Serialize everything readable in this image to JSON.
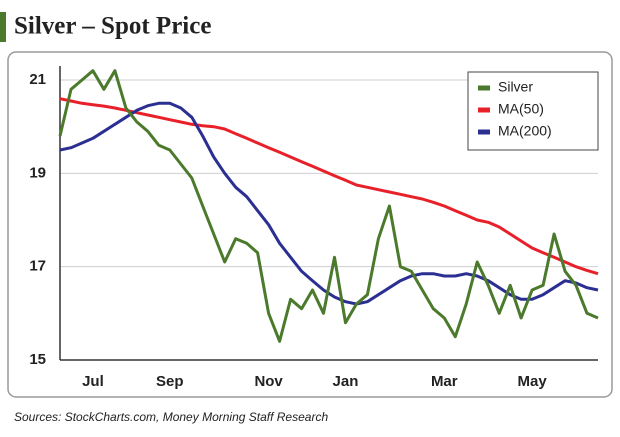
{
  "chart_data": {
    "type": "line",
    "title": "Silver – Spot Price",
    "source": "Sources: StockCharts.com, Money Morning Staff Research",
    "categories": [
      null,
      null,
      null,
      "Jul",
      null,
      null,
      null,
      null,
      null,
      null,
      "Sep",
      null,
      null,
      null,
      null,
      null,
      null,
      null,
      null,
      "Nov",
      null,
      null,
      null,
      null,
      null,
      null,
      "Jan",
      null,
      null,
      null,
      null,
      null,
      null,
      null,
      null,
      "Mar",
      null,
      null,
      null,
      null,
      null,
      null,
      null,
      "May",
      null,
      null,
      null,
      null,
      null,
      null
    ],
    "series": [
      {
        "name": "Silver",
        "color": "#4b7a2c",
        "values": [
          19.8,
          20.8,
          21.0,
          21.2,
          20.8,
          21.2,
          20.4,
          20.1,
          19.9,
          19.6,
          19.5,
          19.2,
          18.9,
          18.3,
          17.7,
          17.1,
          17.6,
          17.5,
          17.3,
          16.0,
          15.4,
          16.3,
          16.1,
          16.5,
          16.0,
          17.2,
          15.8,
          16.2,
          16.4,
          17.6,
          18.3,
          17.0,
          16.9,
          16.5,
          16.1,
          15.9,
          15.5,
          16.2,
          17.1,
          16.6,
          16.0,
          16.6,
          15.9,
          16.5,
          16.6,
          17.7,
          16.9,
          16.6,
          16.0,
          15.9
        ]
      },
      {
        "name": "MA(50)",
        "color": "#e8202a",
        "values": [
          20.6,
          20.55,
          20.5,
          20.47,
          20.44,
          20.4,
          20.35,
          20.3,
          20.25,
          20.2,
          20.15,
          20.1,
          20.05,
          20.02,
          20.0,
          19.95,
          19.85,
          19.75,
          19.65,
          19.55,
          19.45,
          19.35,
          19.25,
          19.15,
          19.05,
          18.95,
          18.85,
          18.75,
          18.7,
          18.65,
          18.6,
          18.55,
          18.5,
          18.45,
          18.38,
          18.3,
          18.2,
          18.1,
          18.0,
          17.95,
          17.85,
          17.7,
          17.55,
          17.4,
          17.3,
          17.2,
          17.1,
          17.0,
          16.92,
          16.85
        ]
      },
      {
        "name": "MA(200)",
        "color": "#2b2f92",
        "values": [
          19.5,
          19.55,
          19.65,
          19.75,
          19.9,
          20.05,
          20.2,
          20.35,
          20.45,
          20.5,
          20.5,
          20.4,
          20.2,
          19.8,
          19.35,
          19.0,
          18.7,
          18.5,
          18.2,
          17.9,
          17.5,
          17.2,
          16.9,
          16.7,
          16.5,
          16.35,
          16.25,
          16.2,
          16.25,
          16.4,
          16.55,
          16.7,
          16.8,
          16.85,
          16.85,
          16.8,
          16.8,
          16.85,
          16.8,
          16.7,
          16.55,
          16.4,
          16.3,
          16.3,
          16.4,
          16.55,
          16.7,
          16.65,
          16.55,
          16.5
        ]
      }
    ],
    "ylim": [
      15,
      21.3
    ],
    "yticks": [
      15,
      17,
      19,
      21
    ],
    "grid": true,
    "legend": "top-right"
  }
}
